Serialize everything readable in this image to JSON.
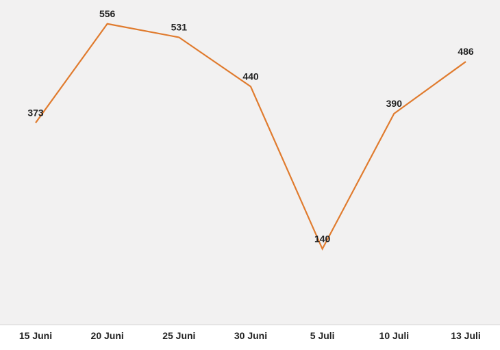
{
  "chart_data": {
    "type": "line",
    "title": "",
    "xlabel": "",
    "ylabel": "",
    "categories": [
      "15 Juni",
      "20 Juni",
      "25 Juni",
      "30 Juni",
      "5 Juli",
      "10 Juli",
      "13 Juli"
    ],
    "series": [
      {
        "values": [
          373,
          556,
          531,
          440,
          140,
          390,
          486
        ],
        "color": "#e07b2e"
      }
    ],
    "ylim": [
      0,
      600
    ],
    "grid": false,
    "legend": "none",
    "data_labels": true
  }
}
